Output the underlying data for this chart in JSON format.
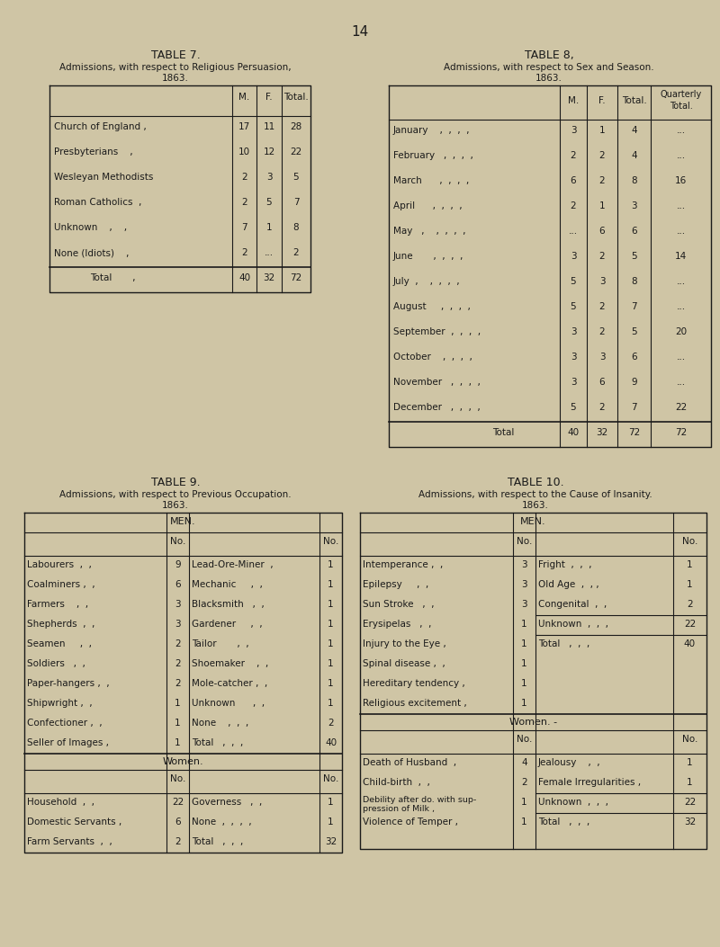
{
  "bg_color": "#cfc5a5",
  "page_num": "14",
  "table7": {
    "title": "TABLE 7.",
    "subtitle1": "Admissions, with respect to Religious Persuasion,",
    "subtitle2": "1863.",
    "headers": [
      "M.",
      "F.",
      "Total."
    ],
    "rows": [
      [
        "Church of England ,",
        "17",
        "11",
        "28"
      ],
      [
        "Presbyterians    ,",
        "10",
        "12",
        "22"
      ],
      [
        "Wesleyan Methodists",
        "2",
        "3",
        "5"
      ],
      [
        "Roman Catholics  ,",
        "2",
        "5",
        "7"
      ],
      [
        "Unknown    ,    ,",
        "7",
        "1",
        "8"
      ],
      [
        "None (Idiots)    ,",
        "2",
        "...",
        "2"
      ]
    ],
    "total_row": [
      "Total       ,",
      "40",
      "32",
      "72"
    ]
  },
  "table8": {
    "title": "TABLE 8,",
    "subtitle1": "Admissions, with respect to Sex and Season.",
    "subtitle2": "1863.",
    "headers": [
      "M.",
      "F.",
      "Total.",
      "Quarterly\nTotal."
    ],
    "rows": [
      [
        "January    ,  ,  ,  ,",
        "3",
        "1",
        "4",
        "..."
      ],
      [
        "February   ,  ,  ,  ,",
        "2",
        "2",
        "4",
        "..."
      ],
      [
        "March      ,  ,  ,  ,",
        "6",
        "2",
        "8",
        "16"
      ],
      [
        "April      ,  ,  ,  ,",
        "2",
        "1",
        "3",
        "..."
      ],
      [
        "May   ,    ,  ,  ,  ,",
        "...",
        "6",
        "6",
        "..."
      ],
      [
        "June       ,  ,  ,  ,",
        "3",
        "2",
        "5",
        "14"
      ],
      [
        "July  ,    ,  ,  ,  ,",
        "5",
        "3",
        "8",
        "..."
      ],
      [
        "August     ,  ,  ,  ,",
        "5",
        "2",
        "7",
        "..."
      ],
      [
        "September  ,  ,  ,  ,",
        "3",
        "2",
        "5",
        "20"
      ],
      [
        "October    ,  ,  ,  ,",
        "3",
        "3",
        "6",
        "..."
      ],
      [
        "November   ,  ,  ,  ,",
        "3",
        "6",
        "9",
        "..."
      ],
      [
        "December   ,  ,  ,  ,",
        "5",
        "2",
        "7",
        "22"
      ]
    ],
    "total_row": [
      "Total       ,  ,",
      "40",
      "32",
      "72",
      "72"
    ]
  },
  "table9": {
    "title": "TABLE 9.",
    "subtitle1": "Admissions, with respect to Previous Occupation.",
    "subtitle2": "1863.",
    "men_header": "MEN.",
    "men_rows": [
      [
        "Labourers  ,  ,",
        "9",
        "Lead-Ore-Miner  ,",
        "1"
      ],
      [
        "Coalminers ,  ,",
        "6",
        "Mechanic     ,  ,",
        "1"
      ],
      [
        "Farmers    ,  ,",
        "3",
        "Blacksmith   ,  ,",
        "1"
      ],
      [
        "Shepherds  ,  ,",
        "3",
        "Gardener     ,  ,",
        "1"
      ],
      [
        "Seamen     ,  ,",
        "2",
        "Tailor       ,  ,",
        "1"
      ],
      [
        "Soldiers   ,  ,",
        "2",
        "Shoemaker    ,  ,",
        "1"
      ],
      [
        "Paper-hangers ,  ,",
        "2",
        "Mole-catcher ,  ,",
        "1"
      ],
      [
        "Shipwright ,  ,",
        "1",
        "Unknown      ,  ,",
        "1"
      ],
      [
        "Confectioner ,  ,",
        "1",
        "None    ,  ,  ,",
        "2"
      ],
      [
        "Seller of Images ,",
        "1",
        "Total   ,  ,  ,",
        "40"
      ]
    ],
    "women_header": "Women.",
    "women_rows": [
      [
        "Household  ,  ,",
        "22",
        "Governess   ,  ,",
        "1"
      ],
      [
        "Domestic Servants ,",
        "6",
        "None  ,  ,  ,  ,",
        "1"
      ],
      [
        "Farm Servants  ,  ,",
        "2",
        "Total   ,  ,  ,",
        "32"
      ]
    ]
  },
  "table10": {
    "title": "TABLE 10.",
    "subtitle1": "Admissions, with respect to the Cause of Insanity.",
    "subtitle2": "1863.",
    "men_header": "MEN.",
    "men_rows": [
      [
        "Intemperance ,  ,",
        "3",
        "Fright  ,  ,  ,",
        "1"
      ],
      [
        "Epilepsy     ,  ,",
        "3",
        "Old Age  ,  , ,",
        "1"
      ],
      [
        "Sun Stroke   ,  ,",
        "3",
        "Congenital  ,  ,",
        "2"
      ],
      [
        "Erysipelas   ,  ,",
        "1",
        "Unknown  ,  ,  ,",
        "22"
      ],
      [
        "Injury to the Eye ,",
        "1",
        "Total   ,  ,  ,",
        "40"
      ],
      [
        "Spinal disease ,  ,",
        "1",
        "",
        ""
      ],
      [
        "Hereditary tendency ,",
        "1",
        "",
        ""
      ],
      [
        "Religious excitement ,",
        "1",
        "",
        ""
      ]
    ],
    "women_header": "Women. -",
    "women_rows": [
      [
        "Death of Husband  ,",
        "4",
        "Jealousy    ,  ,",
        "1"
      ],
      [
        "Child-birth  ,  ,",
        "2",
        "Female Irregularities ,",
        "1"
      ],
      [
        "Debility after do. with sup-\npression of Milk ,",
        "1",
        "Unknown  ,  ,  ,",
        "22"
      ],
      [
        "Violence of Temper ,",
        "1",
        "Total   ,  ,  ,",
        "32"
      ]
    ]
  }
}
